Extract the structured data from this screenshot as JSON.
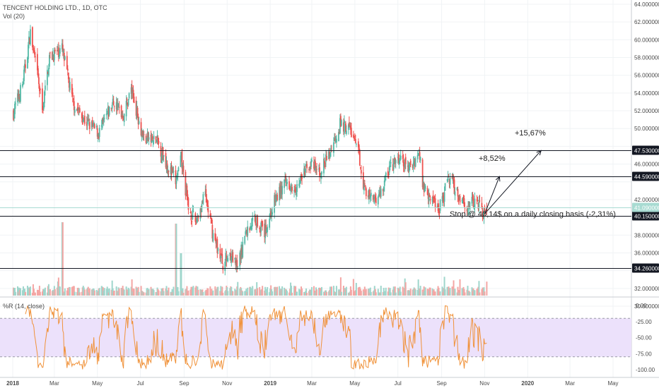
{
  "header": {
    "title": "TENCENT HOLDING LTD., 1D, OTC",
    "volume_label": "Vol (20)",
    "oscillator_label": "%R (14, close)"
  },
  "annotations": {
    "stop_note": "Stop @ 40,14$ on a daily closing basis (-2,31%)",
    "target_1": "+8,52%",
    "target_2": "+15,67%"
  },
  "colors": {
    "up": "#53b9a6",
    "down": "#ef5350",
    "volume_up": "#9fd6cc",
    "volume_down": "#f4a6a4",
    "oscillator_line": "#f0923a",
    "oscillator_band": "#ece1fb",
    "level_badge": "#131722",
    "current_badge": "#a8dbd2"
  },
  "chart_data": [
    {
      "type": "candlestick",
      "title": "TENCENT HOLDING LTD., 1D, OTC",
      "x_ticks": [
        "2018",
        "Mar",
        "May",
        "Jul",
        "Sep",
        "Nov",
        "2019",
        "Mar",
        "May",
        "Jul",
        "Sep",
        "Nov",
        "2020",
        "Mar",
        "May"
      ],
      "y_ticks": [
        "64.000000",
        "62.000000",
        "60.000000",
        "58.000000",
        "56.000000",
        "54.000000",
        "52.000000",
        "50.000000",
        "48.000000",
        "46.000000",
        "44.000000",
        "42.000000",
        "40.000000",
        "38.000000",
        "36.000000",
        "34.000000",
        "32.000000",
        "30.000000"
      ],
      "ylim": [
        29.5,
        64.5
      ],
      "horizontal_levels": [
        47.53,
        44.59,
        40.15,
        34.26
      ],
      "level_labels": [
        "47.530000",
        "44.590000",
        "40.150000",
        "34.260000"
      ],
      "current_price": 41.09,
      "current_price_label": "41.090000",
      "price_path": [
        {
          "date": "2018-01-02",
          "close": 51.8
        },
        {
          "date": "2018-01-15",
          "close": 55.0
        },
        {
          "date": "2018-01-26",
          "close": 60.8
        },
        {
          "date": "2018-02-06",
          "close": 55.5
        },
        {
          "date": "2018-02-12",
          "close": 52.0
        },
        {
          "date": "2018-02-22",
          "close": 58.0
        },
        {
          "date": "2018-03-12",
          "close": 59.0
        },
        {
          "date": "2018-03-27",
          "close": 53.0
        },
        {
          "date": "2018-04-12",
          "close": 51.0
        },
        {
          "date": "2018-05-03",
          "close": 49.5
        },
        {
          "date": "2018-05-24",
          "close": 53.0
        },
        {
          "date": "2018-06-07",
          "close": 51.5
        },
        {
          "date": "2018-06-18",
          "close": 54.5
        },
        {
          "date": "2018-07-05",
          "close": 49.0
        },
        {
          "date": "2018-07-25",
          "close": 48.5
        },
        {
          "date": "2018-08-08",
          "close": 46.0
        },
        {
          "date": "2018-08-20",
          "close": 44.0
        },
        {
          "date": "2018-08-28",
          "close": 46.5
        },
        {
          "date": "2018-09-07",
          "close": 41.0
        },
        {
          "date": "2018-09-17",
          "close": 39.5
        },
        {
          "date": "2018-10-01",
          "close": 42.5
        },
        {
          "date": "2018-10-12",
          "close": 38.0
        },
        {
          "date": "2018-10-26",
          "close": 34.8
        },
        {
          "date": "2018-11-06",
          "close": 36.0
        },
        {
          "date": "2018-11-15",
          "close": 34.0
        },
        {
          "date": "2018-11-26",
          "close": 38.0
        },
        {
          "date": "2018-12-10",
          "close": 40.0
        },
        {
          "date": "2018-12-24",
          "close": 38.3
        },
        {
          "date": "2019-01-08",
          "close": 42.0
        },
        {
          "date": "2019-01-24",
          "close": 44.0
        },
        {
          "date": "2019-02-08",
          "close": 43.5
        },
        {
          "date": "2019-02-25",
          "close": 46.0
        },
        {
          "date": "2019-03-12",
          "close": 45.0
        },
        {
          "date": "2019-03-25",
          "close": 47.0
        },
        {
          "date": "2019-04-10",
          "close": 50.5
        },
        {
          "date": "2019-04-24",
          "close": 50.0
        },
        {
          "date": "2019-05-07",
          "close": 47.0
        },
        {
          "date": "2019-05-14",
          "close": 43.5
        },
        {
          "date": "2019-05-24",
          "close": 42.0
        },
        {
          "date": "2019-06-05",
          "close": 42.5
        },
        {
          "date": "2019-06-19",
          "close": 45.5
        },
        {
          "date": "2019-07-03",
          "close": 46.5
        },
        {
          "date": "2019-07-18",
          "close": 45.5
        },
        {
          "date": "2019-07-31",
          "close": 47.3
        },
        {
          "date": "2019-08-06",
          "close": 43.5
        },
        {
          "date": "2019-08-16",
          "close": 42.5
        },
        {
          "date": "2019-08-28",
          "close": 41.0
        },
        {
          "date": "2019-09-12",
          "close": 44.5
        },
        {
          "date": "2019-09-25",
          "close": 42.5
        },
        {
          "date": "2019-10-08",
          "close": 41.3
        },
        {
          "date": "2019-10-22",
          "close": 41.8
        },
        {
          "date": "2019-10-31",
          "close": 40.5
        },
        {
          "date": "2019-11-04",
          "close": 41.09
        }
      ],
      "projection_lines": [
        {
          "label": "+8,52%",
          "from": {
            "date": "2019-11-01",
            "price": 40.4
          },
          "to": {
            "date": "2019-11-22",
            "price": 44.6
          }
        },
        {
          "label": "+15,67%",
          "from": {
            "date": "2019-11-01",
            "price": 40.4
          },
          "to": {
            "date": "2020-01-20",
            "price": 47.53
          }
        }
      ]
    },
    {
      "type": "bar",
      "title": "Vol (20)",
      "note": "daily volume histogram below price, colored by candle direction; notable spikes around 2018-03, 2018-08 and 2018-10"
    },
    {
      "type": "line",
      "title": "%R (14, close)",
      "y_ticks": [
        "0.00",
        "-25.00",
        "-50.00",
        "-75.00",
        "-100.00"
      ],
      "ylim": [
        -100,
        0
      ],
      "band": [
        -80,
        -20
      ],
      "note": "Williams %R oscillating between 0 and -100 throughout the period"
    }
  ]
}
